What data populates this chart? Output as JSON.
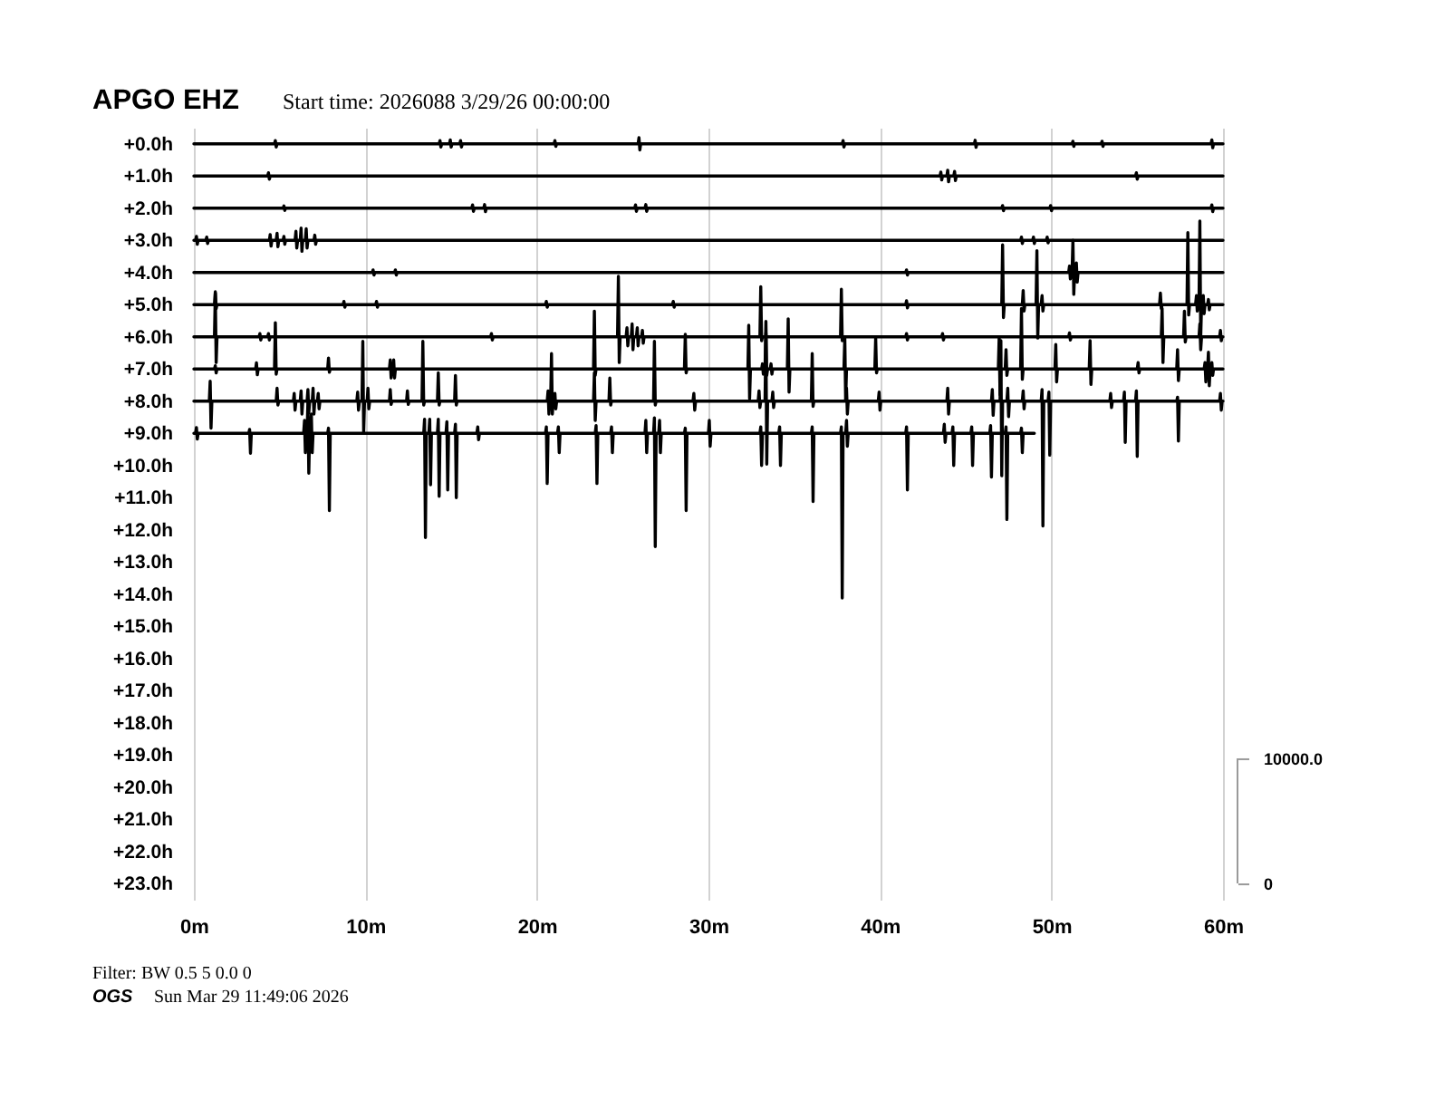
{
  "chart_data": {
    "type": "line",
    "title": "APGO EHZ",
    "subtitle": "Start time: 2026088 3/29/26 00:00:00",
    "annotations": [
      "Filter: BW 0.5 5 0.0 0",
      "OGS",
      "Sun Mar 29 11:49:06 2026"
    ],
    "xlim": [
      0,
      60
    ],
    "xticks": [
      {
        "value": 0,
        "label": "0m"
      },
      {
        "value": 10,
        "label": "10m"
      },
      {
        "value": 20,
        "label": "20m"
      },
      {
        "value": 30,
        "label": "30m"
      },
      {
        "value": 40,
        "label": "40m"
      },
      {
        "value": 50,
        "label": "50m"
      },
      {
        "value": 60,
        "label": "60m"
      }
    ],
    "ylim": [
      23.5,
      -0.5
    ],
    "yticks": [
      {
        "value": 0,
        "label": "+0.0h"
      },
      {
        "value": 1,
        "label": "+1.0h"
      },
      {
        "value": 2,
        "label": "+2.0h"
      },
      {
        "value": 3,
        "label": "+3.0h"
      },
      {
        "value": 4,
        "label": "+4.0h"
      },
      {
        "value": 5,
        "label": "+5.0h"
      },
      {
        "value": 6,
        "label": "+6.0h"
      },
      {
        "value": 7,
        "label": "+7.0h"
      },
      {
        "value": 8,
        "label": "+8.0h"
      },
      {
        "value": 9,
        "label": "+9.0h"
      },
      {
        "value": 10,
        "label": "+10.0h"
      },
      {
        "value": 11,
        "label": "+11.0h"
      },
      {
        "value": 12,
        "label": "+12.0h"
      },
      {
        "value": 13,
        "label": "+13.0h"
      },
      {
        "value": 14,
        "label": "+14.0h"
      },
      {
        "value": 15,
        "label": "+15.0h"
      },
      {
        "value": 16,
        "label": "+16.0h"
      },
      {
        "value": 17,
        "label": "+17.0h"
      },
      {
        "value": 18,
        "label": "+18.0h"
      },
      {
        "value": 19,
        "label": "+19.0h"
      },
      {
        "value": 20,
        "label": "+20.0h"
      },
      {
        "value": 21,
        "label": "+21.0h"
      },
      {
        "value": 22,
        "label": "+22.0h"
      },
      {
        "value": 23,
        "label": "+23.0h"
      }
    ],
    "y2lim": [
      -1300,
      60400
    ],
    "y2ticks": [
      0,
      {
        "value": 10000,
        "label": "10000.0"
      }
    ],
    "grid": "x",
    "series": [
      {
        "color": "#000000",
        "x": [
          0,
          4.7,
          4.75,
          4.8,
          4.85,
          14.3,
          14.35,
          14.4,
          14.45,
          14.9,
          14.95,
          15.0,
          15.05,
          15.5,
          15.55,
          15.6,
          15.65,
          21.0,
          21.05,
          21.1,
          21.15,
          25.9,
          25.95,
          26.0,
          26.05,
          37.8,
          37.85,
          37.9,
          37.95,
          45.5,
          45.55,
          45.6,
          45.65,
          51.2,
          51.25,
          51.3,
          51.35,
          52.9,
          52.95,
          53.0,
          53.05,
          59.3,
          59.35,
          59.4,
          59.45,
          60
        ],
        "values": [
          0,
          0,
          -0.1,
          0.1,
          0,
          0,
          -0.1,
          0.1,
          0,
          0,
          -0.12,
          0.1,
          0,
          0,
          -0.1,
          0.1,
          0,
          0,
          -0.1,
          0.08,
          0,
          0,
          -0.19,
          0.19,
          0,
          0,
          -0.1,
          0.1,
          0,
          0,
          -0.11,
          0.11,
          0,
          0,
          -0.08,
          0.08,
          0,
          0,
          -0.08,
          0.08,
          0,
          0,
          -0.12,
          0.12,
          0,
          0
        ]
      },
      {
        "color": "#000000",
        "x": [
          0,
          4.3,
          4.35,
          4.4,
          4.45,
          43.5,
          43.55,
          43.6,
          43.65,
          43.9,
          43.95,
          44.0,
          44.05,
          44.3,
          44.35,
          44.4,
          44.45,
          54.9,
          54.95,
          55.0,
          55.05,
          60
        ],
        "values": [
          1,
          1,
          0.9,
          1.1,
          1,
          1,
          0.88,
          1.12,
          1,
          1,
          0.82,
          1.18,
          1,
          1,
          0.86,
          1.14,
          1,
          1,
          0.9,
          1.1,
          1,
          1
        ]
      },
      {
        "color": "#000000",
        "x": [
          0,
          5.2,
          5.25,
          5.3,
          5.35,
          16.2,
          16.25,
          16.3,
          16.35,
          16.9,
          16.95,
          17.0,
          17.05,
          25.7,
          25.75,
          25.8,
          25.85,
          26.3,
          26.35,
          26.4,
          26.45,
          47.1,
          47.15,
          47.2,
          47.25,
          49.9,
          49.95,
          50.0,
          50.05,
          59.3,
          59.35,
          59.4,
          59.45,
          60
        ],
        "values": [
          2,
          2,
          1.93,
          2.07,
          2,
          2,
          1.9,
          2.1,
          2,
          2,
          1.89,
          2.11,
          2,
          2,
          1.9,
          2.1,
          2,
          2,
          1.89,
          2.1,
          2,
          2,
          1.92,
          2.08,
          2,
          2,
          1.92,
          2.08,
          2,
          2,
          1.9,
          2.11,
          2,
          2
        ]
      },
      {
        "color": "#000000",
        "x": [
          0,
          0.1,
          0.15,
          0.2,
          0.25,
          0.7,
          0.75,
          0.8,
          0.85,
          4.4,
          4.45,
          4.5,
          4.55,
          4.8,
          4.85,
          4.9,
          4.95,
          5.2,
          5.25,
          5.3,
          5.35,
          5.9,
          5.95,
          6.0,
          6.05,
          6.2,
          6.25,
          6.3,
          6.35,
          6.5,
          6.55,
          6.6,
          6.65,
          7.0,
          7.05,
          7.1,
          7.15,
          48.2,
          48.25,
          48.3,
          48.35,
          48.9,
          48.95,
          49.0,
          49.05,
          49.7,
          49.75,
          49.8,
          49.85,
          60
        ],
        "values": [
          3,
          3,
          2.88,
          3.12,
          3,
          3,
          2.9,
          3.1,
          3,
          3,
          2.82,
          3.18,
          3,
          3,
          2.78,
          3.2,
          3,
          3,
          2.88,
          3.12,
          3,
          3,
          2.72,
          3.24,
          3,
          3,
          2.62,
          3.34,
          3,
          3,
          2.64,
          3.24,
          3,
          3,
          2.84,
          3.12,
          3,
          3,
          2.9,
          3.1,
          3,
          3,
          2.9,
          3.1,
          3,
          3,
          2.9,
          3.08,
          3,
          3
        ]
      },
      {
        "color": "#000000",
        "x": [
          0,
          10.4,
          10.45,
          10.5,
          10.55,
          11.7,
          11.75,
          11.8,
          11.85,
          41.5,
          41.55,
          41.6,
          41.65,
          51.0,
          51.05,
          51.1,
          51.15,
          51.2,
          51.25,
          51.3,
          51.35,
          51.4,
          51.45,
          51.5,
          51.55,
          60
        ],
        "values": [
          4,
          4,
          3.92,
          4.08,
          4,
          4,
          3.92,
          4.08,
          4,
          4,
          3.92,
          4.08,
          4,
          4,
          3.8,
          4.2,
          4,
          4,
          3,
          4.68,
          4,
          4,
          3.7,
          4.3,
          4,
          4
        ]
      },
      {
        "color": "#000000",
        "x": [
          0,
          1.2,
          1.25,
          1.3,
          1.35,
          8.7,
          8.75,
          8.8,
          8.85,
          10.6,
          10.65,
          10.7,
          10.75,
          20.5,
          20.55,
          20.6,
          20.65,
          27.9,
          27.95,
          28.0,
          28.05,
          41.5,
          41.55,
          41.6,
          41.65,
          47.1,
          47.15,
          47.2,
          47.25,
          48.3,
          48.35,
          48.4,
          48.45,
          49.1,
          49.15,
          49.2,
          49.25,
          49.4,
          49.45,
          49.5,
          49.55,
          56.3,
          56.35,
          56.4,
          56.45,
          57.9,
          57.95,
          58.0,
          58.05,
          58.4,
          58.45,
          58.5,
          58.55,
          58.6,
          58.65,
          58.7,
          58.75,
          58.8,
          58.85,
          58.9,
          58.95,
          59.1,
          59.15,
          59.2,
          59.25,
          60
        ],
        "values": [
          5,
          5,
          4.6,
          5.12,
          5,
          5,
          4.9,
          5.08,
          5,
          5,
          4.9,
          5.08,
          5,
          5,
          4.9,
          5.08,
          5,
          5,
          4.9,
          5.08,
          5,
          5,
          4.88,
          5.1,
          5,
          5,
          3.14,
          5.4,
          5,
          5,
          4.56,
          5.2,
          5,
          5,
          3.32,
          6.04,
          5,
          5,
          4.72,
          5.2,
          5,
          5,
          4.64,
          5.12,
          5,
          5,
          2.76,
          5.32,
          5,
          5,
          4.72,
          5.2,
          5,
          5,
          2.4,
          6,
          5,
          5,
          4.72,
          5.28,
          5,
          5,
          4.84,
          5.16,
          5,
          5
        ]
      },
      {
        "color": "#000000",
        "x": [
          0,
          1.2,
          1.25,
          1.3,
          1.35,
          3.8,
          3.85,
          3.9,
          3.95,
          4.3,
          4.35,
          4.4,
          4.45,
          17.3,
          17.35,
          17.4,
          17.45,
          24.7,
          24.75,
          24.8,
          24.85,
          25.2,
          25.25,
          25.3,
          25.35,
          25.5,
          25.55,
          25.6,
          25.65,
          25.8,
          25.85,
          25.9,
          25.95,
          26.1,
          26.15,
          26.2,
          26.25,
          33.0,
          33.05,
          33.1,
          33.15,
          37.7,
          37.75,
          37.8,
          37.85,
          41.5,
          41.55,
          41.6,
          41.65,
          43.6,
          43.65,
          43.7,
          43.75,
          51.0,
          51.05,
          51.1,
          51.15,
          56.4,
          56.45,
          56.5,
          56.55,
          57.7,
          57.75,
          57.8,
          57.85,
          58.6,
          58.65,
          58.7,
          58.75,
          59.8,
          59.85,
          59.9,
          59.95,
          60
        ],
        "values": [
          6,
          6,
          4.64,
          6.8,
          6,
          6,
          5.9,
          6.1,
          6,
          6,
          5.9,
          6.1,
          6,
          6,
          5.9,
          6.1,
          6,
          6,
          4.12,
          6.8,
          6,
          6,
          5.72,
          6.28,
          6,
          6,
          5.6,
          6.4,
          6,
          6,
          5.72,
          6.28,
          6,
          6,
          5.8,
          6.2,
          6,
          6,
          4.44,
          6.12,
          6,
          6,
          4.52,
          6.12,
          6,
          6,
          5.9,
          6.1,
          6,
          6,
          5.9,
          6.1,
          6,
          6,
          5.88,
          6.1,
          6,
          6,
          5.12,
          6.8,
          6,
          6,
          5.2,
          6.16,
          6,
          6,
          5.6,
          6.4,
          6,
          6,
          5.8,
          6.12,
          6,
          6
        ]
      },
      {
        "color": "#000000",
        "x": [
          0,
          1.2,
          1.25,
          1.3,
          1.35,
          3.6,
          3.65,
          3.7,
          3.75,
          4.7,
          4.75,
          4.8,
          4.85,
          7.8,
          7.85,
          7.9,
          7.95,
          11.4,
          11.45,
          11.5,
          11.55,
          11.6,
          11.65,
          11.7,
          11.75,
          23.3,
          23.35,
          23.4,
          23.45,
          28.6,
          28.65,
          28.7,
          28.75,
          32.3,
          32.35,
          32.4,
          32.45,
          33.1,
          33.15,
          33.2,
          33.25,
          33.3,
          33.35,
          33.4,
          33.45,
          33.6,
          33.65,
          33.7,
          33.75,
          34.6,
          34.65,
          34.7,
          34.75,
          37.9,
          37.95,
          38.0,
          38.05,
          39.7,
          39.75,
          39.8,
          39.85,
          46.9,
          46.95,
          47.0,
          47.05,
          47.3,
          47.35,
          47.4,
          47.45,
          48.2,
          48.25,
          48.3,
          48.35,
          50.2,
          50.25,
          50.3,
          50.35,
          52.2,
          52.25,
          52.3,
          52.35,
          55.0,
          55.05,
          55.1,
          55.15,
          57.3,
          57.35,
          57.4,
          57.45,
          58.9,
          58.95,
          59.0,
          59.05,
          59.1,
          59.15,
          59.2,
          59.25,
          59.3,
          59.35,
          59.4,
          59.45,
          60
        ],
        "values": [
          7,
          7,
          6.9,
          7.12,
          7,
          7,
          6.81,
          7.18,
          7,
          7,
          5.56,
          7.16,
          7,
          7,
          6.66,
          7.1,
          7,
          7,
          6.72,
          7.28,
          7,
          7,
          6.72,
          7.28,
          7,
          7,
          5.2,
          7.2,
          7,
          7,
          5.92,
          7.12,
          7,
          7,
          5.64,
          7.92,
          7,
          7,
          6.84,
          7.16,
          7,
          7,
          5.52,
          7.2,
          7,
          7,
          6.84,
          7.16,
          7,
          7,
          5.44,
          7.72,
          7,
          7,
          6.04,
          7.96,
          7,
          7,
          6.04,
          7.12,
          7,
          7,
          6,
          7.8,
          7,
          7,
          6.4,
          7.2,
          7,
          7,
          5.12,
          7.32,
          7,
          7,
          6.24,
          7.4,
          7,
          7,
          6.12,
          7.48,
          7,
          7,
          6.8,
          7.12,
          7,
          7,
          6.4,
          7.36,
          7,
          7,
          6.8,
          7.4,
          7,
          7,
          6.48,
          7.52,
          7,
          7,
          6.8,
          7.2,
          7,
          7
        ]
      },
      {
        "color": "#000000",
        "x": [
          0,
          0.9,
          0.95,
          1.0,
          1.05,
          4.8,
          4.85,
          4.9,
          4.95,
          5.8,
          5.85,
          5.9,
          5.95,
          6.2,
          6.25,
          6.3,
          6.35,
          6.6,
          6.65,
          6.7,
          6.75,
          6.9,
          6.95,
          7.0,
          7.05,
          7.2,
          7.25,
          7.3,
          7.35,
          9.5,
          9.55,
          9.6,
          9.65,
          9.8,
          9.85,
          9.9,
          9.95,
          10.1,
          10.15,
          10.2,
          10.25,
          11.4,
          11.45,
          11.5,
          11.55,
          12.4,
          12.45,
          12.5,
          12.55,
          13.3,
          13.35,
          13.4,
          13.45,
          14.2,
          14.25,
          14.3,
          14.35,
          15.2,
          15.25,
          15.3,
          15.35,
          20.6,
          20.65,
          20.7,
          20.75,
          20.8,
          20.85,
          20.9,
          20.95,
          21.0,
          21.05,
          21.1,
          21.15,
          23.3,
          23.35,
          23.4,
          23.45,
          24.2,
          24.25,
          24.3,
          24.35,
          26.8,
          26.85,
          26.9,
          26.95,
          29.1,
          29.15,
          29.2,
          29.25,
          32.9,
          32.95,
          33.0,
          33.05,
          33.3,
          33.35,
          33.4,
          33.45,
          33.7,
          33.75,
          33.8,
          33.85,
          36.0,
          36.05,
          36.1,
          36.15,
          38.0,
          38.05,
          38.1,
          38.15,
          39.9,
          39.95,
          40.0,
          40.05,
          43.9,
          43.95,
          44.0,
          44.05,
          46.5,
          46.55,
          46.6,
          46.65,
          47.0,
          47.05,
          47.1,
          47.15,
          47.4,
          47.45,
          47.5,
          47.55,
          48.3,
          48.35,
          48.4,
          48.45,
          49.4,
          49.45,
          49.5,
          49.55,
          49.8,
          49.85,
          49.9,
          49.95,
          53.4,
          53.45,
          53.5,
          53.55,
          54.2,
          54.25,
          54.3,
          54.35,
          54.9,
          54.95,
          55.0,
          55.05,
          57.3,
          57.35,
          57.4,
          57.45,
          59.8,
          59.85,
          59.9,
          59.95,
          60
        ],
        "values": [
          8,
          8,
          7.38,
          8.84,
          8,
          8,
          7.6,
          8.12,
          8,
          8,
          7.76,
          8.28,
          8,
          8,
          7.68,
          8.4,
          8,
          8,
          7.64,
          8.36,
          8,
          8,
          7.6,
          8.4,
          8,
          8,
          7.76,
          8.24,
          8,
          8,
          7.72,
          8.28,
          8,
          8,
          6.14,
          8.96,
          8,
          8,
          7.6,
          8.24,
          8,
          8,
          7.64,
          8.1,
          8,
          8,
          7.68,
          8.1,
          8,
          8,
          6.14,
          8.12,
          8,
          8,
          7.12,
          8.12,
          8,
          8,
          7.2,
          8.12,
          8,
          8,
          7.68,
          8.4,
          8,
          8,
          6.52,
          8.4,
          8,
          8,
          7.76,
          8.24,
          8,
          8,
          7.12,
          8.6,
          8,
          8,
          7.28,
          8.12,
          8,
          8,
          6.14,
          8.12,
          8,
          8,
          7.76,
          8.28,
          8,
          8,
          7.68,
          8.2,
          8,
          8,
          5.88,
          9.96,
          8,
          8,
          7.72,
          8.2,
          8,
          8,
          6.52,
          8.16,
          8,
          8,
          7.6,
          8.4,
          8,
          8,
          7.72,
          8.28,
          8,
          8,
          7.6,
          8.4,
          8,
          8,
          7.64,
          8.44,
          8,
          8,
          6.12,
          10.32,
          8,
          8,
          7.6,
          8.48,
          8,
          8,
          7.68,
          8.24,
          8,
          8,
          7.64,
          11.88,
          8,
          8,
          7.72,
          9.68,
          8,
          8,
          7.76,
          8.2,
          8,
          8,
          7.72,
          9.28,
          8,
          8,
          7.68,
          9.72,
          8,
          8,
          7.88,
          9.24,
          8,
          8,
          7.76,
          8.28,
          8,
          8
        ]
      },
      {
        "color": "#000000",
        "x": [
          0,
          0.1,
          0.15,
          0.2,
          0.25,
          3.2,
          3.25,
          3.3,
          3.35,
          6.4,
          6.45,
          6.5,
          6.55,
          6.6,
          6.65,
          6.7,
          6.75,
          6.8,
          6.85,
          6.9,
          6.95,
          7.8,
          7.85,
          7.9,
          7.95,
          13.4,
          13.45,
          13.5,
          13.55,
          13.7,
          13.75,
          13.8,
          13.85,
          14.2,
          14.25,
          14.3,
          14.35,
          14.7,
          14.75,
          14.8,
          14.85,
          15.2,
          15.25,
          15.3,
          15.35,
          16.5,
          16.55,
          16.6,
          16.65,
          20.5,
          20.55,
          20.6,
          20.65,
          21.2,
          21.25,
          21.3,
          21.35,
          23.4,
          23.45,
          23.5,
          23.55,
          24.3,
          24.35,
          24.4,
          24.45,
          26.3,
          26.35,
          26.4,
          26.45,
          26.8,
          26.85,
          26.9,
          26.95,
          27.1,
          27.15,
          27.2,
          27.25,
          28.6,
          28.65,
          28.7,
          28.75,
          30.0,
          30.05,
          30.1,
          30.15,
          33.0,
          33.05,
          33.1,
          33.15,
          34.1,
          34.15,
          34.2,
          34.25,
          36.0,
          36.05,
          36.1,
          36.15,
          37.7,
          37.75,
          37.8,
          37.85,
          38.0,
          38.05,
          38.1,
          38.15,
          41.5,
          41.55,
          41.6,
          41.65,
          43.7,
          43.75,
          43.8,
          43.85,
          44.2,
          44.25,
          44.3,
          44.35,
          45.3,
          45.35,
          45.4,
          45.45,
          46.4,
          46.45,
          46.5,
          46.55,
          47.3,
          47.35,
          47.4,
          47.45,
          48.2,
          48.25,
          48.3,
          48.35,
          49.0
        ],
        "values": [
          9,
          9,
          8.82,
          9.18,
          9,
          9,
          8.88,
          9.62,
          9,
          9,
          8.6,
          9.6,
          9,
          9,
          8,
          10.24,
          9,
          9,
          8.4,
          9.6,
          9,
          9,
          8.84,
          11.4,
          9,
          9,
          8.56,
          12.24,
          9,
          9,
          8.56,
          10.6,
          9,
          9,
          8.56,
          10.96,
          9,
          9,
          8.64,
          10.76,
          9,
          9,
          8.72,
          11,
          9,
          9,
          8.8,
          9.2,
          9,
          9,
          8.8,
          10.56,
          9,
          9,
          8.8,
          9.6,
          9,
          9,
          8.76,
          10.56,
          9,
          9,
          8.8,
          9.6,
          9,
          9,
          8.6,
          9.6,
          9,
          9,
          8.52,
          12.52,
          9,
          9,
          8.6,
          9.6,
          9,
          9,
          8.84,
          11.4,
          9,
          9,
          8.6,
          9.4,
          9,
          9,
          8.8,
          10,
          9,
          9,
          8.8,
          10,
          9,
          9,
          8.8,
          11.12,
          9,
          9,
          8.8,
          14.12,
          9,
          9,
          8.6,
          9.4,
          9,
          9,
          8.8,
          10.76,
          9,
          9,
          8.72,
          9.28,
          9,
          9,
          8.8,
          10,
          9,
          9,
          8.8,
          10,
          9,
          9,
          8.76,
          10.36,
          9,
          9,
          8.8,
          11.68,
          9,
          9,
          8.84,
          9.6,
          9,
          9
        ]
      }
    ]
  }
}
